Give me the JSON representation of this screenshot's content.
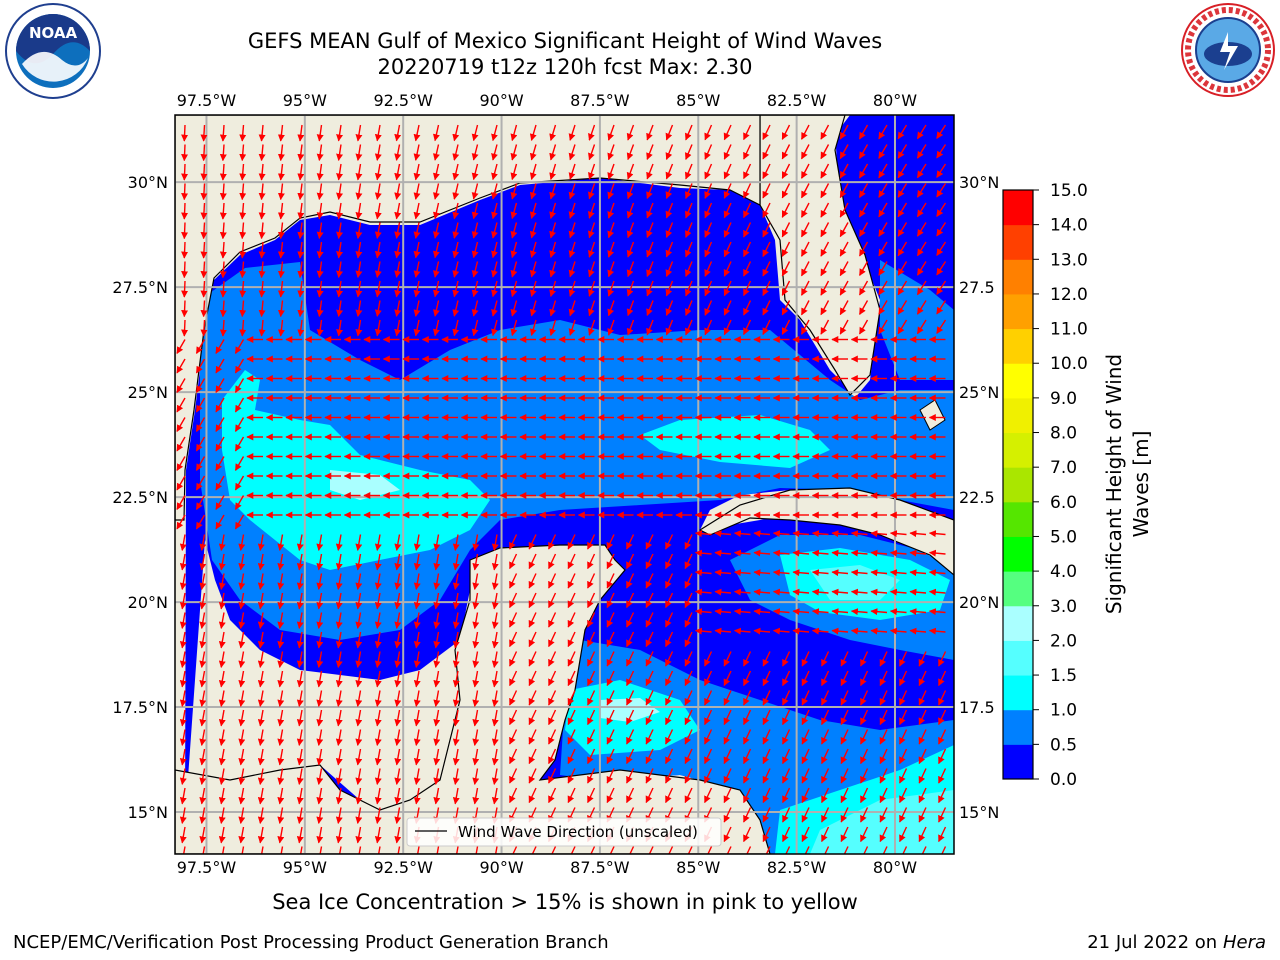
{
  "header": {
    "title_line1": "GEFS MEAN Gulf of Mexico Significant Height of Wind Waves",
    "title_line2": "20220719 t12z 120h fcst   Max: 2.30"
  },
  "map": {
    "lon_range": [
      -98.3,
      -78.5
    ],
    "lat_range": [
      14.0,
      31.6
    ],
    "lon_ticks": [
      -97.5,
      -95,
      -92.5,
      -90,
      -87.5,
      -85,
      -82.5,
      -80
    ],
    "lon_tick_labels": [
      "97.5°W",
      "95°W",
      "92.5°W",
      "90°W",
      "87.5°W",
      "85°W",
      "82.5°W",
      "80°W"
    ],
    "lat_ticks": [
      15,
      17.5,
      20,
      22.5,
      25,
      27.5,
      30
    ],
    "lat_tick_labels_left": [
      "15°N",
      "17.5°N",
      "20°N",
      "22.5°N",
      "25°N",
      "27.5°N",
      "30°N"
    ],
    "lat_tick_labels_right": [
      "15°N",
      "17.5",
      "20°N",
      "22.5",
      "25°N",
      "27.5",
      "30°N"
    ],
    "grid": true,
    "land_color": "#efedde",
    "arrow_color": "#ff0000",
    "legend": {
      "label": "Wind Wave Direction (unscaled)",
      "position": "bottom-center"
    }
  },
  "colorbar": {
    "levels": [
      0.0,
      0.5,
      1.0,
      1.5,
      2.0,
      3.0,
      4.0,
      5.0,
      6.0,
      7.0,
      8.0,
      9.0,
      10.0,
      11.0,
      12.0,
      13.0,
      14.0,
      15.0
    ],
    "tick_labels": [
      "0.0",
      "0.5",
      "1.0",
      "1.5",
      "2.0",
      "3.0",
      "4.0",
      "5.0",
      "6.0",
      "7.0",
      "8.0",
      "9.0",
      "10.0",
      "11.0",
      "12.0",
      "13.0",
      "14.0",
      "15.0"
    ],
    "colors": [
      "#0000ff",
      "#0080ff",
      "#00ffff",
      "#55ffff",
      "#aaffff",
      "#55ff80",
      "#00ff00",
      "#55e600",
      "#aae600",
      "#d5f000",
      "#f0f000",
      "#ffff00",
      "#ffd000",
      "#ffa000",
      "#ff8000",
      "#ff4000",
      "#ff0000"
    ],
    "label_line1": "Significant Height of Wind",
    "label_line2": "Waves [m]"
  },
  "footer": {
    "note": "Sea Ice Concentration > 15% is shown in pink to yellow",
    "credit": "NCEP/EMC/Verification Post Processing Product Generation Branch",
    "date": "21 Jul 2022",
    "on": "on",
    "machine": "Hera"
  },
  "logos": {
    "noaa": {
      "name": "noaa-logo",
      "text": "NOAA"
    },
    "nws": {
      "name": "national-weather-service-logo",
      "text": "NATIONAL WEATHER SERVICE"
    }
  }
}
